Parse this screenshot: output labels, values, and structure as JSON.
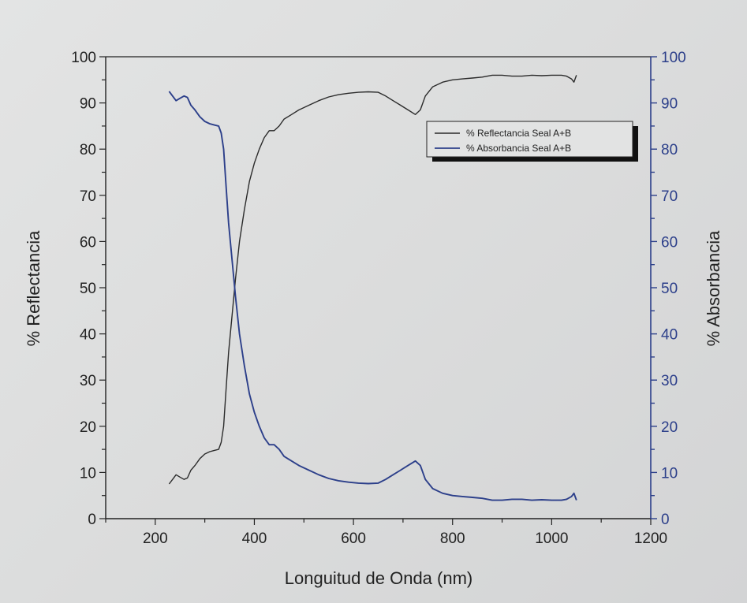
{
  "chart_data": {
    "type": "line",
    "xlabel": "Longuitud de Onda (nm)",
    "ylabel": "% Reflectancia",
    "ylabel_right": "% Absorbancia",
    "xlim": [
      100,
      1200
    ],
    "ylim": [
      0,
      100
    ],
    "ylim_right": [
      0,
      100
    ],
    "x_ticks": [
      200,
      400,
      600,
      800,
      1000,
      1200
    ],
    "y_ticks": [
      0,
      10,
      20,
      30,
      40,
      50,
      60,
      70,
      80,
      90,
      100
    ],
    "y_ticks_right": [
      0,
      10,
      20,
      30,
      40,
      50,
      60,
      70,
      80,
      90,
      100
    ],
    "grid": false,
    "legend_position": "top-right",
    "colors": {
      "reflectancia": "#2b2b2b",
      "absorbancia": "#2c3f8a",
      "right_axis": "#2c3f8a"
    },
    "series": [
      {
        "name": "% Reflectancia Seal A+B",
        "axis": "left",
        "x": [
          228,
          235,
          242,
          250,
          258,
          265,
          272,
          280,
          290,
          300,
          310,
          320,
          328,
          333,
          338,
          343,
          348,
          355,
          362,
          370,
          380,
          390,
          400,
          410,
          420,
          430,
          440,
          450,
          460,
          475,
          490,
          510,
          530,
          550,
          570,
          590,
          610,
          630,
          650,
          665,
          680,
          695,
          710,
          725,
          735,
          745,
          760,
          780,
          800,
          820,
          840,
          860,
          880,
          900,
          920,
          940,
          960,
          980,
          1000,
          1020,
          1030,
          1040,
          1045,
          1050
        ],
        "y": [
          7.5,
          8.5,
          9.5,
          9.0,
          8.5,
          8.8,
          10.5,
          11.5,
          13,
          14,
          14.5,
          14.8,
          15,
          16.5,
          20,
          28,
          36,
          44,
          52,
          60,
          67,
          73,
          77,
          80,
          82.5,
          84,
          84,
          85,
          86.5,
          87.5,
          88.5,
          89.5,
          90.5,
          91.3,
          91.8,
          92.1,
          92.3,
          92.4,
          92.3,
          91.5,
          90.5,
          89.5,
          88.5,
          87.5,
          88.5,
          91.5,
          93.5,
          94.5,
          95,
          95.2,
          95.4,
          95.6,
          96,
          96,
          95.8,
          95.8,
          96,
          95.9,
          96,
          96,
          95.8,
          95.2,
          94.5,
          96
        ]
      },
      {
        "name": "% Absorbancia Seal A+B",
        "axis": "right",
        "x": [
          228,
          235,
          242,
          250,
          258,
          265,
          272,
          280,
          290,
          300,
          310,
          320,
          328,
          333,
          338,
          343,
          348,
          355,
          362,
          370,
          380,
          390,
          400,
          410,
          420,
          430,
          440,
          450,
          460,
          475,
          490,
          510,
          530,
          550,
          570,
          590,
          610,
          630,
          650,
          665,
          680,
          695,
          710,
          725,
          735,
          745,
          760,
          780,
          800,
          820,
          840,
          860,
          880,
          900,
          920,
          940,
          960,
          980,
          1000,
          1020,
          1030,
          1040,
          1045,
          1050
        ],
        "y": [
          92.5,
          91.5,
          90.5,
          91,
          91.5,
          91.2,
          89.5,
          88.5,
          87,
          86,
          85.5,
          85.2,
          85,
          83.5,
          80,
          72,
          64,
          56,
          48,
          40,
          33,
          27,
          23,
          20,
          17.5,
          16,
          16,
          15,
          13.5,
          12.5,
          11.5,
          10.5,
          9.5,
          8.7,
          8.2,
          7.9,
          7.7,
          7.6,
          7.7,
          8.5,
          9.5,
          10.5,
          11.5,
          12.5,
          11.5,
          8.5,
          6.5,
          5.5,
          5,
          4.8,
          4.6,
          4.4,
          4,
          4,
          4.2,
          4.2,
          4,
          4.1,
          4,
          4,
          4.2,
          4.8,
          5.5,
          4
        ]
      }
    ]
  }
}
